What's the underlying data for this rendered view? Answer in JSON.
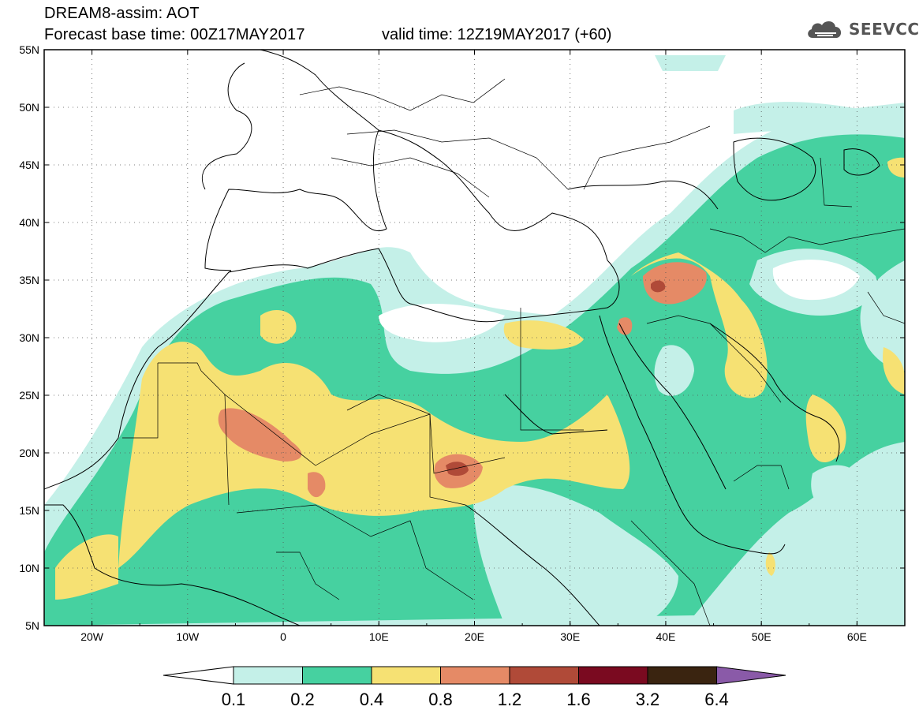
{
  "header": {
    "line1": "DREAM8-assim: AOT",
    "line2": "Forecast base time: 00Z17MAY2017",
    "line3": "valid time: 12Z19MAY2017 (+60)"
  },
  "logo": {
    "text": "SEEVCCC",
    "icon": "cloud-icon"
  },
  "map": {
    "lon_range": [
      -25,
      65
    ],
    "lat_range": [
      5,
      55
    ],
    "lat_labels": [
      "55N",
      "50N",
      "45N",
      "40N",
      "35N",
      "30N",
      "25N",
      "20N",
      "15N",
      "10N",
      "5N"
    ],
    "lon_labels": [
      "20W",
      "10W",
      "0",
      "10E",
      "20E",
      "30E",
      "40E",
      "50E",
      "60E"
    ],
    "grid": "dotted"
  },
  "colorbar": {
    "labels": [
      "0.1",
      "0.2",
      "0.4",
      "0.8",
      "1.2",
      "1.6",
      "3.2",
      "6.4"
    ],
    "colors": [
      "#ffffff",
      "#c4f0e8",
      "#46d1a0",
      "#f6e173",
      "#e58a66",
      "#b04a38",
      "#7a0a20",
      "#3a2410",
      "#8a5aa8"
    ]
  }
}
